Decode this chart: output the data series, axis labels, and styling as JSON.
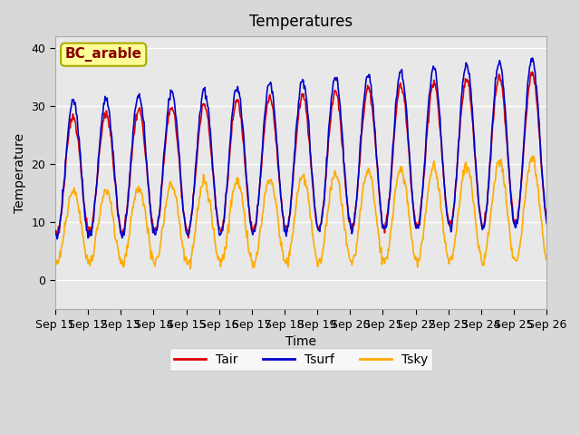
{
  "title": "Temperatures",
  "xlabel": "Time",
  "ylabel": "Temperature",
  "ylim": [
    -5,
    42
  ],
  "fig_facecolor": "#d8d8d8",
  "plot_facecolor": "#e8e8e8",
  "annotation_text": "BC_arable",
  "annotation_bg": "#ffff99",
  "annotation_border": "#aaaa00",
  "annotation_text_color": "#880000",
  "line_tair_color": "#dd0000",
  "line_tsurf_color": "#0000cc",
  "line_tsky_color": "#ffaa00",
  "legend_labels": [
    "Tair",
    "Tsurf",
    "Tsky"
  ],
  "xtick_labels": [
    "Sep 11",
    "Sep 12",
    "Sep 13",
    "Sep 14",
    "Sep 15",
    "Sep 16",
    "Sep 17",
    "Sep 18",
    "Sep 19",
    "Sep 20",
    "Sep 21",
    "Sep 22",
    "Sep 23",
    "Sep 24",
    "Sep 25",
    "Sep 26"
  ],
  "n_days": 15,
  "points_per_day": 48
}
